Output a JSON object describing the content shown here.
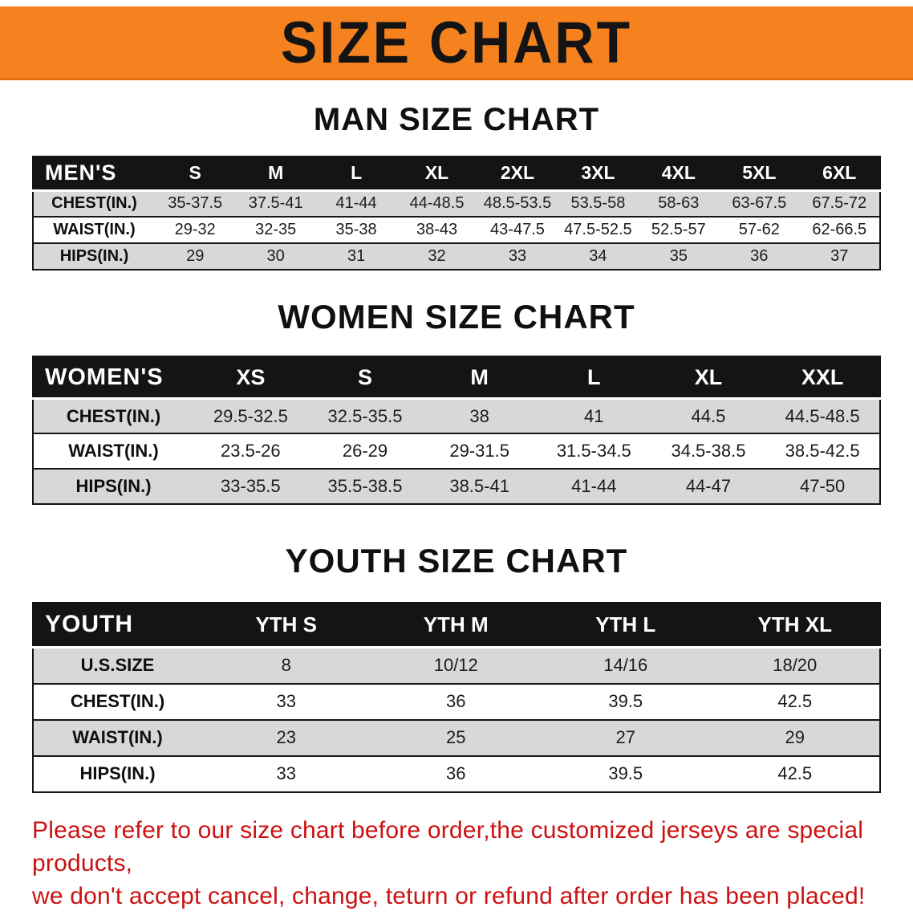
{
  "banner": {
    "title": "SIZE CHART",
    "bg_color": "#F5821F",
    "text_color": "#141414"
  },
  "chart_data": [
    {
      "type": "table",
      "title": "MAN SIZE CHART",
      "header": [
        "MEN'S",
        "S",
        "M",
        "L",
        "XL",
        "2XL",
        "3XL",
        "4XL",
        "5XL",
        "6XL"
      ],
      "rows": [
        [
          "CHEST(IN.)",
          "35-37.5",
          "37.5-41",
          "41-44",
          "44-48.5",
          "48.5-53.5",
          "53.5-58",
          "58-63",
          "63-67.5",
          "67.5-72"
        ],
        [
          "WAIST(IN.)",
          "29-32",
          "32-35",
          "35-38",
          "38-43",
          "43-47.5",
          "47.5-52.5",
          "52.5-57",
          "57-62",
          "62-66.5"
        ],
        [
          "HIPS(IN.)",
          "29",
          "30",
          "31",
          "32",
          "33",
          "34",
          "35",
          "36",
          "37"
        ]
      ]
    },
    {
      "type": "table",
      "title": "WOMEN SIZE CHART",
      "header": [
        "WOMEN'S",
        "XS",
        "S",
        "M",
        "L",
        "XL",
        "XXL"
      ],
      "rows": [
        [
          "CHEST(IN.)",
          "29.5-32.5",
          "32.5-35.5",
          "38",
          "41",
          "44.5",
          "44.5-48.5"
        ],
        [
          "WAIST(IN.)",
          "23.5-26",
          "26-29",
          "29-31.5",
          "31.5-34.5",
          "34.5-38.5",
          "38.5-42.5"
        ],
        [
          "HIPS(IN.)",
          "33-35.5",
          "35.5-38.5",
          "38.5-41",
          "41-44",
          "44-47",
          "47-50"
        ]
      ]
    },
    {
      "type": "table",
      "title": "YOUTH SIZE CHART",
      "header": [
        "YOUTH",
        "YTH S",
        "YTH M",
        "YTH L",
        "YTH XL"
      ],
      "rows": [
        [
          "U.S.SIZE",
          "8",
          "10/12",
          "14/16",
          "18/20"
        ],
        [
          "CHEST(IN.)",
          "33",
          "36",
          "39.5",
          "42.5"
        ],
        [
          "WAIST(IN.)",
          "23",
          "25",
          "27",
          "29"
        ],
        [
          "HIPS(IN.)",
          "33",
          "36",
          "39.5",
          "42.5"
        ]
      ]
    }
  ],
  "footer": {
    "line1": "Please refer to our size chart before order,the customized jerseys are special products,",
    "line2": "we don't accept cancel, change, teturn or refund after order has been placed!",
    "text_color": "#CC1111"
  }
}
